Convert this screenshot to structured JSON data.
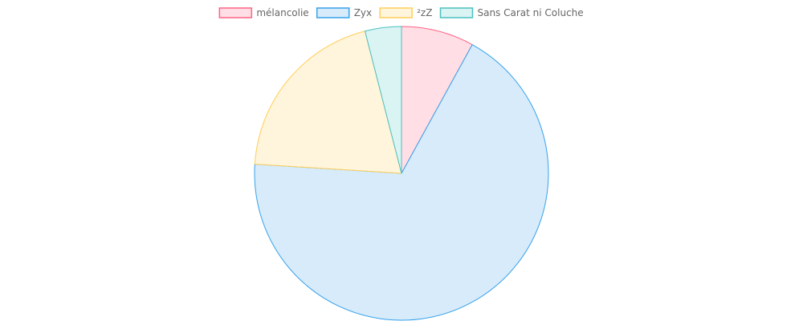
{
  "chart_data": {
    "type": "pie",
    "categories": [
      "mélancolie",
      "Zyx",
      "²zZ",
      "Sans Carat ni Coluche"
    ],
    "values": [
      8,
      68,
      20,
      4
    ],
    "legend_position": "top",
    "colors": {
      "fills": [
        "#ffdee5",
        "#d7ebfa",
        "#fff4dc",
        "#daf3f3"
      ],
      "strokes": [
        "#ff6384",
        "#36a2eb",
        "#ffce56",
        "#4bc0c0"
      ]
    }
  }
}
